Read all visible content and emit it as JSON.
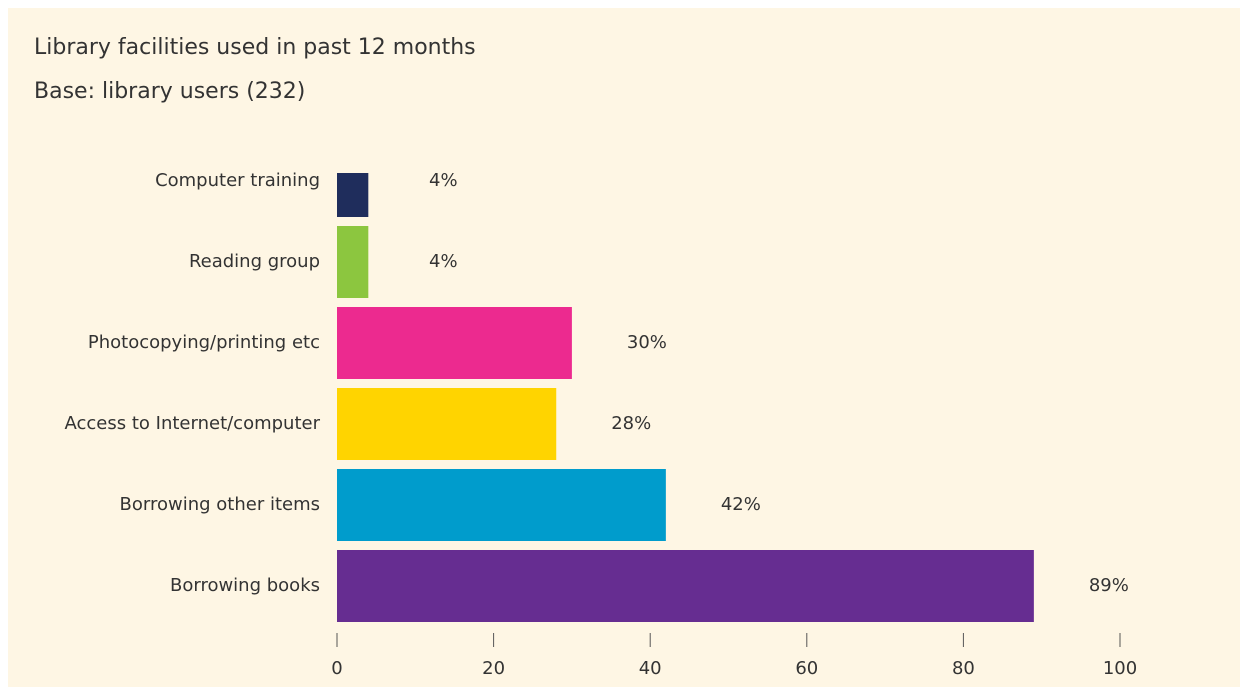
{
  "chart_data": {
    "type": "bar",
    "orientation": "horizontal",
    "title": "Library facilities used in past 12 months",
    "subtitle": "Base: library users (232)",
    "categories": [
      "Computer training",
      "Reading group",
      "Photocopying/printing etc",
      "Access to Internet/computer",
      "Borrowing other items",
      "Borrowing books"
    ],
    "values": [
      4,
      4,
      30,
      28,
      42,
      89
    ],
    "value_labels": [
      "4%",
      "4%",
      "30%",
      "28%",
      "42%",
      "89%"
    ],
    "colors": [
      "#1f2d5c",
      "#8cc63f",
      "#ec2a8f",
      "#ffd400",
      "#009ccc",
      "#662d91"
    ],
    "xlim": [
      0,
      100
    ],
    "xticks": [
      0,
      20,
      40,
      60,
      80,
      100
    ],
    "grid": false
  }
}
